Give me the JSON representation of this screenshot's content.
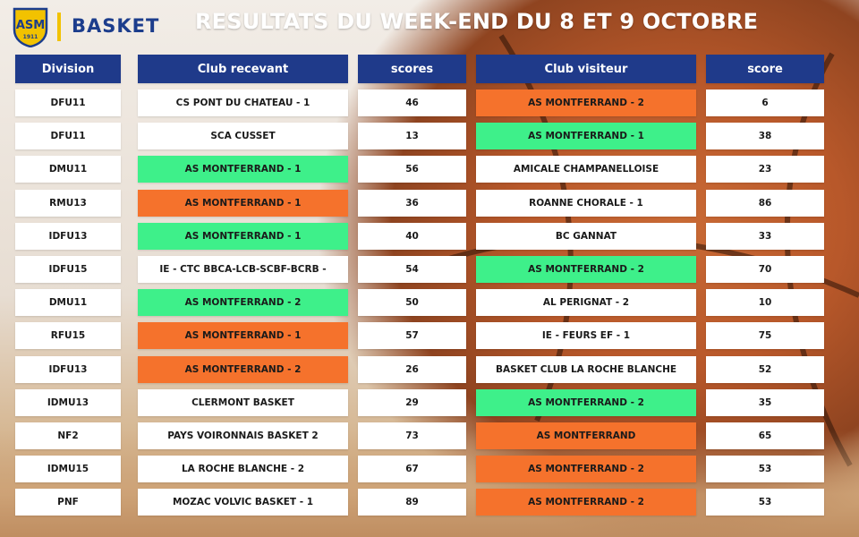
{
  "header": {
    "brand": "BASKET",
    "logo_text": "ASM",
    "logo_year": "1911",
    "title": "RESULTATS DU WEEK-END DU 8 ET 9 OCTOBRE"
  },
  "colors": {
    "header_bg": "#1f3a8a",
    "green": "#3ef08a",
    "orange": "#f5722c",
    "white": "#ffffff",
    "brand_blue": "#1c3d8c",
    "brand_yellow": "#f2c200"
  },
  "table": {
    "columns": [
      "Division",
      "Club recevant",
      "scores",
      "Club visiteur",
      "score"
    ],
    "rows": [
      {
        "division": "DFU11",
        "home": "CS PONT DU CHATEAU - 1",
        "home_style": "white",
        "home_score": "46",
        "away": "AS MONTFERRAND - 2",
        "away_style": "orange",
        "away_score": "6"
      },
      {
        "division": "DFU11",
        "home": "SCA CUSSET",
        "home_style": "white",
        "home_score": "13",
        "away": "AS MONTFERRAND - 1",
        "away_style": "green",
        "away_score": "38"
      },
      {
        "division": "DMU11",
        "home": "AS MONTFERRAND - 1",
        "home_style": "green",
        "home_score": "56",
        "away": "AMICALE CHAMPANELLOISE",
        "away_style": "white",
        "away_score": "23"
      },
      {
        "division": "RMU13",
        "home": "AS MONTFERRAND - 1",
        "home_style": "orange",
        "home_score": "36",
        "away": "ROANNE CHORALE - 1",
        "away_style": "white",
        "away_score": "86"
      },
      {
        "division": "IDFU13",
        "home": "AS MONTFERRAND - 1",
        "home_style": "green",
        "home_score": "40",
        "away": "BC GANNAT",
        "away_style": "white",
        "away_score": "33"
      },
      {
        "division": "IDFU15",
        "home": "IE - CTC BBCA-LCB-SCBF-BCRB -",
        "home_style": "white",
        "home_score": "54",
        "away": "AS MONTFERRAND - 2",
        "away_style": "green",
        "away_score": "70"
      },
      {
        "division": "DMU11",
        "home": "AS MONTFERRAND - 2",
        "home_style": "green",
        "home_score": "50",
        "away": "AL PERIGNAT - 2",
        "away_style": "white",
        "away_score": "10"
      },
      {
        "division": "RFU15",
        "home": "AS MONTFERRAND - 1",
        "home_style": "orange",
        "home_score": "57",
        "away": "IE - FEURS EF - 1",
        "away_style": "white",
        "away_score": "75"
      },
      {
        "division": "IDFU13",
        "home": "AS MONTFERRAND - 2",
        "home_style": "orange",
        "home_score": "26",
        "away": "BASKET CLUB LA ROCHE BLANCHE",
        "away_style": "white",
        "away_score": "52"
      },
      {
        "division": "IDMU13",
        "home": "CLERMONT BASKET",
        "home_style": "white",
        "home_score": "29",
        "away": "AS MONTFERRAND - 2",
        "away_style": "green",
        "away_score": "35"
      },
      {
        "division": "NF2",
        "home": "PAYS VOIRONNAIS BASKET 2",
        "home_style": "white",
        "home_score": "73",
        "away": "AS MONTFERRAND",
        "away_style": "orange",
        "away_score": "65"
      },
      {
        "division": "IDMU15",
        "home": "LA ROCHE BLANCHE - 2",
        "home_style": "white",
        "home_score": "67",
        "away": "AS MONTFERRAND - 2",
        "away_style": "orange",
        "away_score": "53"
      },
      {
        "division": "PNF",
        "home": "MOZAC VOLVIC BASKET - 1",
        "home_style": "white",
        "home_score": "89",
        "away": "AS MONTFERRAND - 2",
        "away_style": "orange",
        "away_score": "53"
      }
    ]
  }
}
